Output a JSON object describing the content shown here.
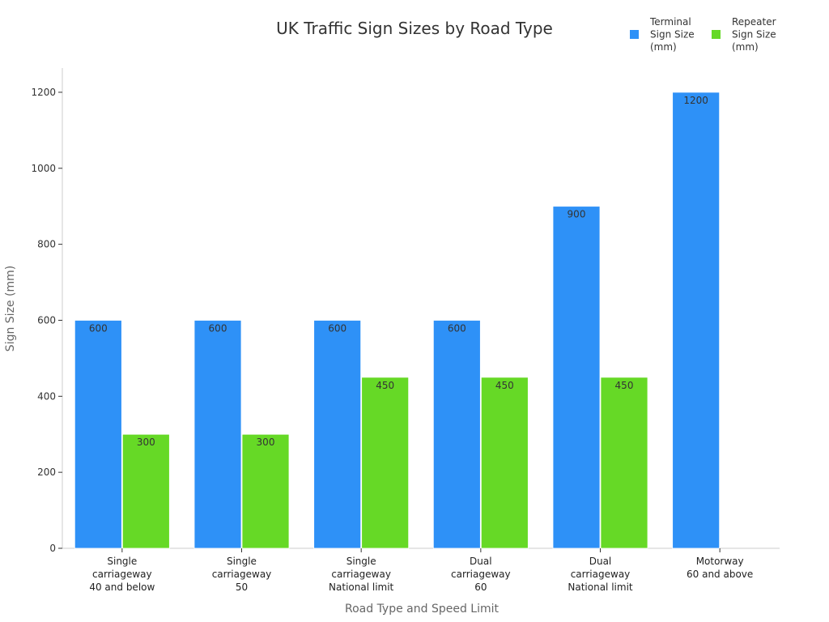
{
  "chart_data": {
    "type": "bar",
    "title": "UK Traffic Sign Sizes by Road Type",
    "xlabel": "Road Type and Speed Limit",
    "ylabel": "Sign Size (mm)",
    "ylim": [
      0,
      1260
    ],
    "yticks": [
      0,
      200,
      400,
      600,
      800,
      1000,
      1200
    ],
    "legend_position": "top-right",
    "categories": [
      [
        "Single",
        "carriageway",
        "40 and below"
      ],
      [
        "Single",
        "carriageway",
        "50"
      ],
      [
        "Single",
        "carriageway",
        "National limit"
      ],
      [
        "Dual",
        "carriageway",
        "60"
      ],
      [
        "Dual",
        "carriageway",
        "National limit"
      ],
      [
        "Motorway",
        "60 and above"
      ]
    ],
    "series": [
      {
        "name": [
          "Terminal",
          "Sign Size",
          "(mm)"
        ],
        "color": "#2e91f7",
        "values": [
          600,
          600,
          600,
          600,
          900,
          1200
        ]
      },
      {
        "name": [
          "Repeater",
          "Sign Size",
          "(mm)"
        ],
        "color": "#66d926",
        "values": [
          300,
          300,
          450,
          450,
          450,
          null
        ]
      }
    ]
  }
}
